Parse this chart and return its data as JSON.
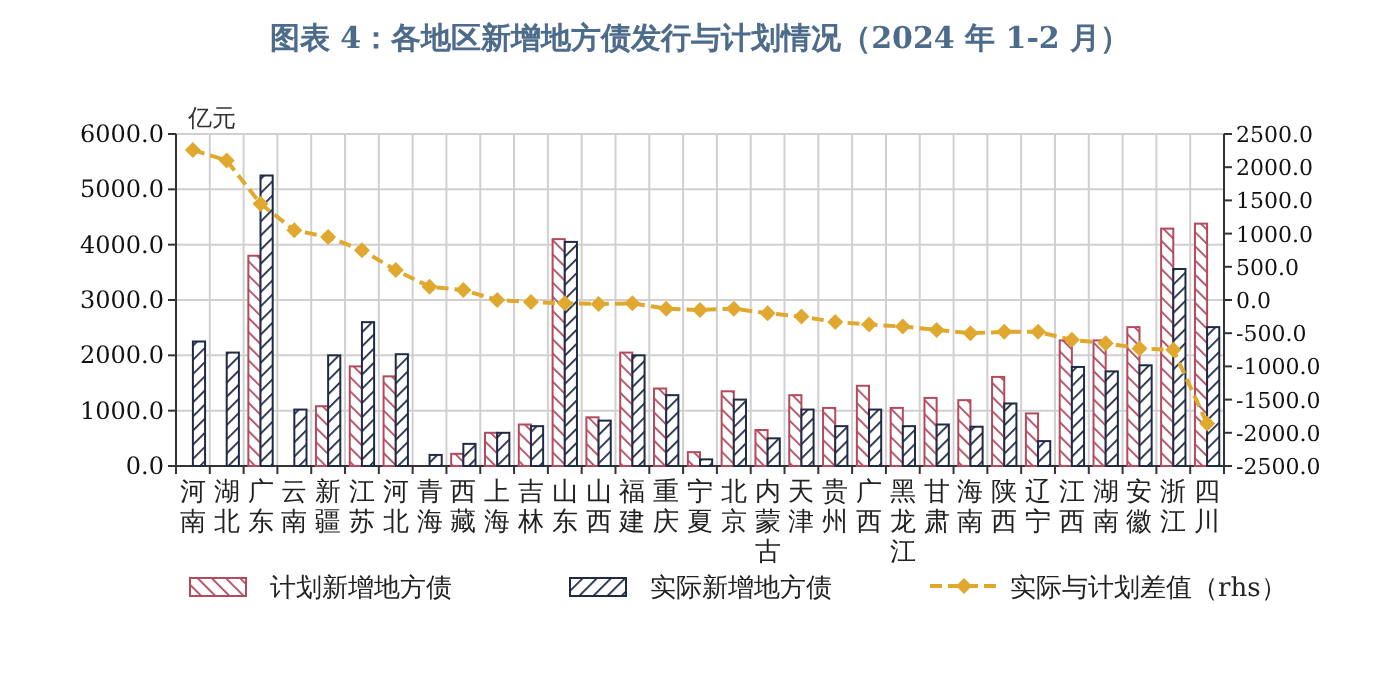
{
  "chart_data": {
    "type": "bar",
    "title": "图表 4：各地区新增地方债发行与计划情况（2024 年 1-2 月）",
    "categories": [
      "河南",
      "湖北",
      "广东",
      "云南",
      "新疆",
      "江苏",
      "河北",
      "青海",
      "西藏",
      "上海",
      "吉林",
      "山东",
      "山西",
      "福建",
      "重庆",
      "宁夏",
      "北京",
      "内蒙古",
      "天津",
      "贵州",
      "广西",
      "黑龙江",
      "甘肃",
      "海南",
      "陕西",
      "辽宁",
      "江西",
      "湖南",
      "安徽",
      "浙江",
      "四川"
    ],
    "series": [
      {
        "name": "计划新增地方债",
        "color": "#b34a5e",
        "values": [
          null,
          null,
          3800,
          null,
          1080,
          1800,
          1620,
          null,
          220,
          600,
          750,
          4100,
          880,
          2050,
          1400,
          250,
          1350,
          650,
          1280,
          1050,
          1450,
          1050,
          1230,
          1190,
          1610,
          950,
          2270,
          2270,
          2510,
          4290,
          4380
        ]
      },
      {
        "name": "实际新增地方债",
        "color": "#1f2a44",
        "values": [
          2250,
          2050,
          5250,
          1020,
          2000,
          2600,
          2020,
          200,
          400,
          600,
          720,
          4050,
          820,
          2000,
          1280,
          120,
          1200,
          500,
          1020,
          720,
          1020,
          720,
          750,
          710,
          1130,
          450,
          1790,
          1710,
          1820,
          3560,
          2510
        ]
      },
      {
        "name": "实际与计划差值（rhs）",
        "type": "line",
        "axis": "y2",
        "color": "#e0a82e",
        "marker": "diamond",
        "line_style": "dashed",
        "values": [
          2260,
          2100,
          1450,
          1050,
          950,
          750,
          450,
          200,
          150,
          0,
          -30,
          -50,
          -60,
          -50,
          -130,
          -150,
          -130,
          -200,
          -250,
          -330,
          -370,
          -400,
          -450,
          -500,
          -480,
          -480,
          -600,
          -650,
          -730,
          -750,
          -1860
        ]
      }
    ],
    "ylim": [
      0,
      6000
    ],
    "yticks": [
      {
        "value": 0,
        "label": "0.0"
      },
      {
        "value": 1000,
        "label": "1000.0"
      },
      {
        "value": 2000,
        "label": "2000.0"
      },
      {
        "value": 3000,
        "label": "3000.0"
      },
      {
        "value": 4000,
        "label": "4000.0"
      },
      {
        "value": 5000,
        "label": "5000.0"
      },
      {
        "value": 6000,
        "label": "6000.0"
      }
    ],
    "y2lim": [
      -2500,
      2500
    ],
    "y2ticks": [
      {
        "value": -2500,
        "label": "-2500.0"
      },
      {
        "value": -2000,
        "label": "-2000.0"
      },
      {
        "value": -1500,
        "label": "-1500.0"
      },
      {
        "value": -1000,
        "label": "-1000.0"
      },
      {
        "value": -500,
        "label": "-500.0"
      },
      {
        "value": 0,
        "label": "0.0"
      },
      {
        "value": 500,
        "label": "500.0"
      },
      {
        "value": 1000,
        "label": "1000.0"
      },
      {
        "value": 1500,
        "label": "1500.0"
      },
      {
        "value": 2000,
        "label": "2000.0"
      },
      {
        "value": 2500,
        "label": "2500.0"
      }
    ],
    "ylabel": "亿元",
    "grid": true,
    "legend": "bottom"
  }
}
